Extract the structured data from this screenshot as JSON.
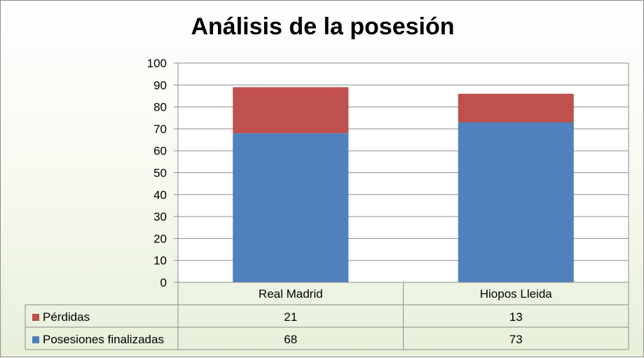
{
  "chart_data": {
    "type": "bar",
    "stacked": true,
    "title": "Análisis de la posesión",
    "categories": [
      "Real Madrid",
      "Hiopos Lleida"
    ],
    "series": [
      {
        "name": "Pérdidas",
        "values": [
          21,
          13
        ],
        "color": "#c0504d"
      },
      {
        "name": "Posesiones finalizadas",
        "values": [
          68,
          73
        ],
        "color": "#4f81bd"
      }
    ],
    "ylim": [
      0,
      100
    ],
    "yticks": [
      "0",
      "10",
      "20",
      "30",
      "40",
      "50",
      "60",
      "70",
      "80",
      "90",
      "100"
    ],
    "grid": true,
    "legend": "data-table"
  }
}
